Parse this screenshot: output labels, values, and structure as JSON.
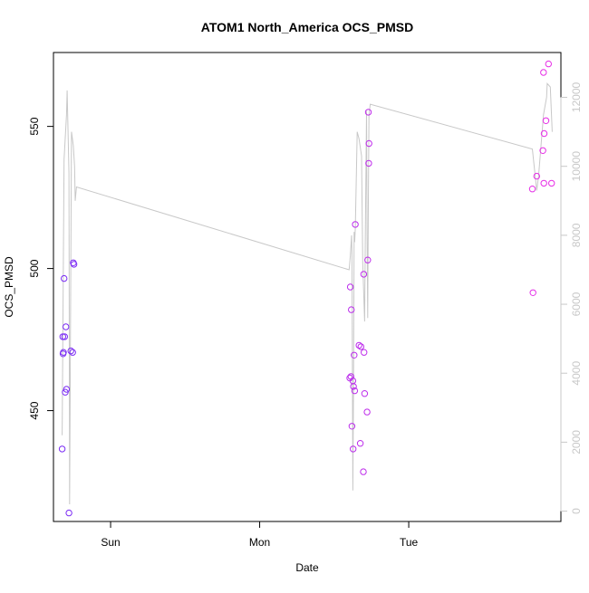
{
  "chart_data": {
    "type": "scatter",
    "title": "ATOM1 North_America OCS_PMSD",
    "xlabel": "Date",
    "ylabel": "OCS_PMSD",
    "x_ticks": [
      "Sun",
      "Mon",
      "Tue"
    ],
    "x_tick_hours": [
      24,
      48,
      72
    ],
    "x_range_hours": [
      14.8,
      96.5
    ],
    "ylim_left": [
      411,
      576
    ],
    "y_ticks_left": [
      450,
      500,
      550
    ],
    "ylim_right": [
      -300,
      13300
    ],
    "y_ticks_right": [
      0,
      2000,
      4000,
      6000,
      8000,
      10000,
      12000
    ],
    "grid": false,
    "legend": "none",
    "points_color_start": "#7a2cf4",
    "points_color_end": "#e82ee6",
    "line_color": "#c8c8c8",
    "points": [
      {
        "h": 16.2,
        "y": 436.5
      },
      {
        "h": 16.3,
        "y": 476
      },
      {
        "h": 16.35,
        "y": 470
      },
      {
        "h": 16.4,
        "y": 470.5
      },
      {
        "h": 16.5,
        "y": 496.5
      },
      {
        "h": 16.6,
        "y": 476
      },
      {
        "h": 16.7,
        "y": 456.5
      },
      {
        "h": 16.8,
        "y": 479.5
      },
      {
        "h": 16.9,
        "y": 457.5
      },
      {
        "h": 17.3,
        "y": 414
      },
      {
        "h": 17.6,
        "y": 471
      },
      {
        "h": 17.9,
        "y": 470.5
      },
      {
        "h": 18.0,
        "y": 502
      },
      {
        "h": 18.1,
        "y": 501.5
      },
      {
        "h": 62.5,
        "y": 461.5
      },
      {
        "h": 62.6,
        "y": 493.5
      },
      {
        "h": 62.7,
        "y": 462
      },
      {
        "h": 62.75,
        "y": 485.5
      },
      {
        "h": 62.85,
        "y": 444.5
      },
      {
        "h": 63.0,
        "y": 460.5
      },
      {
        "h": 63.05,
        "y": 436.5
      },
      {
        "h": 63.1,
        "y": 458.5
      },
      {
        "h": 63.2,
        "y": 469.5
      },
      {
        "h": 63.3,
        "y": 457
      },
      {
        "h": 63.4,
        "y": 515.5
      },
      {
        "h": 64.0,
        "y": 473
      },
      {
        "h": 64.2,
        "y": 438.5
      },
      {
        "h": 64.3,
        "y": 472.5
      },
      {
        "h": 64.7,
        "y": 428.5
      },
      {
        "h": 64.75,
        "y": 498
      },
      {
        "h": 64.8,
        "y": 470.5
      },
      {
        "h": 64.9,
        "y": 456
      },
      {
        "h": 65.3,
        "y": 449.5
      },
      {
        "h": 65.4,
        "y": 503
      },
      {
        "h": 65.5,
        "y": 555
      },
      {
        "h": 65.55,
        "y": 537
      },
      {
        "h": 65.6,
        "y": 544
      },
      {
        "h": 91.9,
        "y": 528
      },
      {
        "h": 92.0,
        "y": 491.5
      },
      {
        "h": 92.6,
        "y": 532.5
      },
      {
        "h": 93.6,
        "y": 541.5
      },
      {
        "h": 93.7,
        "y": 569
      },
      {
        "h": 93.75,
        "y": 530
      },
      {
        "h": 93.8,
        "y": 547.5
      },
      {
        "h": 94.1,
        "y": 552
      },
      {
        "h": 94.5,
        "y": 572
      },
      {
        "h": 95.0,
        "y": 530
      }
    ],
    "line": [
      {
        "h": 16.2,
        "r": 2200
      },
      {
        "h": 16.5,
        "r": 10200
      },
      {
        "h": 16.9,
        "r": 11500
      },
      {
        "h": 17.0,
        "r": 12200
      },
      {
        "h": 17.3,
        "r": 9800
      },
      {
        "h": 17.4,
        "r": 200
      },
      {
        "h": 17.7,
        "r": 11000
      },
      {
        "h": 18.0,
        "r": 10600
      },
      {
        "h": 18.2,
        "r": 10000
      },
      {
        "h": 18.3,
        "r": 9000
      },
      {
        "h": 18.5,
        "r": 9400
      },
      {
        "h": 62.4,
        "r": 7000
      },
      {
        "h": 62.6,
        "r": 7400
      },
      {
        "h": 62.8,
        "r": 8000
      },
      {
        "h": 62.85,
        "r": 7500
      },
      {
        "h": 63.0,
        "r": 600
      },
      {
        "h": 63.1,
        "r": 3500
      },
      {
        "h": 63.2,
        "r": 8100
      },
      {
        "h": 63.3,
        "r": 7800
      },
      {
        "h": 63.4,
        "r": 8200
      },
      {
        "h": 63.7,
        "r": 11000
      },
      {
        "h": 64.0,
        "r": 10800
      },
      {
        "h": 64.4,
        "r": 10300
      },
      {
        "h": 64.6,
        "r": 7200
      },
      {
        "h": 64.9,
        "r": 5500
      },
      {
        "h": 65.0,
        "r": 7800
      },
      {
        "h": 65.2,
        "r": 11600
      },
      {
        "h": 65.3,
        "r": 8000
      },
      {
        "h": 65.4,
        "r": 5600
      },
      {
        "h": 65.5,
        "r": 9000
      },
      {
        "h": 65.6,
        "r": 11500
      },
      {
        "h": 65.8,
        "r": 11800
      },
      {
        "h": 91.9,
        "r": 10500
      },
      {
        "h": 92.6,
        "r": 9300
      },
      {
        "h": 92.9,
        "r": 9700
      },
      {
        "h": 93.7,
        "r": 11500
      },
      {
        "h": 94.2,
        "r": 12000
      },
      {
        "h": 94.3,
        "r": 12400
      },
      {
        "h": 94.8,
        "r": 12300
      },
      {
        "h": 95.1,
        "r": 11000
      }
    ]
  }
}
